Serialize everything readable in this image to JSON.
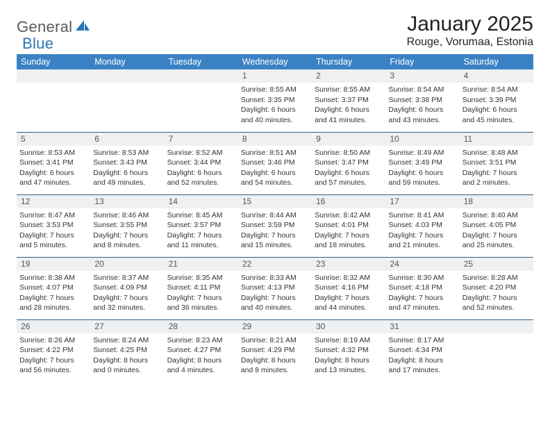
{
  "logo": {
    "text1": "General",
    "text2": "Blue"
  },
  "title": "January 2025",
  "location": "Rouge, Vorumaa, Estonia",
  "colors": {
    "header_bg": "#3b82c4",
    "header_text": "#ffffff",
    "daynum_bg": "#eef0f2",
    "row_border": "#2f5e87",
    "logo_gray": "#5a5a5a",
    "logo_blue": "#2a74b8"
  },
  "typography": {
    "title_fontsize": 30,
    "location_fontsize": 16,
    "weekday_fontsize": 12.5,
    "daynum_fontsize": 12,
    "body_fontsize": 10.5
  },
  "weekdays": [
    "Sunday",
    "Monday",
    "Tuesday",
    "Wednesday",
    "Thursday",
    "Friday",
    "Saturday"
  ],
  "weeks": [
    [
      null,
      null,
      null,
      {
        "n": "1",
        "sunrise": "8:55 AM",
        "sunset": "3:35 PM",
        "dl1": "Daylight: 6 hours",
        "dl2": "and 40 minutes."
      },
      {
        "n": "2",
        "sunrise": "8:55 AM",
        "sunset": "3:37 PM",
        "dl1": "Daylight: 6 hours",
        "dl2": "and 41 minutes."
      },
      {
        "n": "3",
        "sunrise": "8:54 AM",
        "sunset": "3:38 PM",
        "dl1": "Daylight: 6 hours",
        "dl2": "and 43 minutes."
      },
      {
        "n": "4",
        "sunrise": "8:54 AM",
        "sunset": "3:39 PM",
        "dl1": "Daylight: 6 hours",
        "dl2": "and 45 minutes."
      }
    ],
    [
      {
        "n": "5",
        "sunrise": "8:53 AM",
        "sunset": "3:41 PM",
        "dl1": "Daylight: 6 hours",
        "dl2": "and 47 minutes."
      },
      {
        "n": "6",
        "sunrise": "8:53 AM",
        "sunset": "3:43 PM",
        "dl1": "Daylight: 6 hours",
        "dl2": "and 49 minutes."
      },
      {
        "n": "7",
        "sunrise": "8:52 AM",
        "sunset": "3:44 PM",
        "dl1": "Daylight: 6 hours",
        "dl2": "and 52 minutes."
      },
      {
        "n": "8",
        "sunrise": "8:51 AM",
        "sunset": "3:46 PM",
        "dl1": "Daylight: 6 hours",
        "dl2": "and 54 minutes."
      },
      {
        "n": "9",
        "sunrise": "8:50 AM",
        "sunset": "3:47 PM",
        "dl1": "Daylight: 6 hours",
        "dl2": "and 57 minutes."
      },
      {
        "n": "10",
        "sunrise": "8:49 AM",
        "sunset": "3:49 PM",
        "dl1": "Daylight: 6 hours",
        "dl2": "and 59 minutes."
      },
      {
        "n": "11",
        "sunrise": "8:48 AM",
        "sunset": "3:51 PM",
        "dl1": "Daylight: 7 hours",
        "dl2": "and 2 minutes."
      }
    ],
    [
      {
        "n": "12",
        "sunrise": "8:47 AM",
        "sunset": "3:53 PM",
        "dl1": "Daylight: 7 hours",
        "dl2": "and 5 minutes."
      },
      {
        "n": "13",
        "sunrise": "8:46 AM",
        "sunset": "3:55 PM",
        "dl1": "Daylight: 7 hours",
        "dl2": "and 8 minutes."
      },
      {
        "n": "14",
        "sunrise": "8:45 AM",
        "sunset": "3:57 PM",
        "dl1": "Daylight: 7 hours",
        "dl2": "and 11 minutes."
      },
      {
        "n": "15",
        "sunrise": "8:44 AM",
        "sunset": "3:59 PM",
        "dl1": "Daylight: 7 hours",
        "dl2": "and 15 minutes."
      },
      {
        "n": "16",
        "sunrise": "8:42 AM",
        "sunset": "4:01 PM",
        "dl1": "Daylight: 7 hours",
        "dl2": "and 18 minutes."
      },
      {
        "n": "17",
        "sunrise": "8:41 AM",
        "sunset": "4:03 PM",
        "dl1": "Daylight: 7 hours",
        "dl2": "and 21 minutes."
      },
      {
        "n": "18",
        "sunrise": "8:40 AM",
        "sunset": "4:05 PM",
        "dl1": "Daylight: 7 hours",
        "dl2": "and 25 minutes."
      }
    ],
    [
      {
        "n": "19",
        "sunrise": "8:38 AM",
        "sunset": "4:07 PM",
        "dl1": "Daylight: 7 hours",
        "dl2": "and 28 minutes."
      },
      {
        "n": "20",
        "sunrise": "8:37 AM",
        "sunset": "4:09 PM",
        "dl1": "Daylight: 7 hours",
        "dl2": "and 32 minutes."
      },
      {
        "n": "21",
        "sunrise": "8:35 AM",
        "sunset": "4:11 PM",
        "dl1": "Daylight: 7 hours",
        "dl2": "and 36 minutes."
      },
      {
        "n": "22",
        "sunrise": "8:33 AM",
        "sunset": "4:13 PM",
        "dl1": "Daylight: 7 hours",
        "dl2": "and 40 minutes."
      },
      {
        "n": "23",
        "sunrise": "8:32 AM",
        "sunset": "4:16 PM",
        "dl1": "Daylight: 7 hours",
        "dl2": "and 44 minutes."
      },
      {
        "n": "24",
        "sunrise": "8:30 AM",
        "sunset": "4:18 PM",
        "dl1": "Daylight: 7 hours",
        "dl2": "and 47 minutes."
      },
      {
        "n": "25",
        "sunrise": "8:28 AM",
        "sunset": "4:20 PM",
        "dl1": "Daylight: 7 hours",
        "dl2": "and 52 minutes."
      }
    ],
    [
      {
        "n": "26",
        "sunrise": "8:26 AM",
        "sunset": "4:22 PM",
        "dl1": "Daylight: 7 hours",
        "dl2": "and 56 minutes."
      },
      {
        "n": "27",
        "sunrise": "8:24 AM",
        "sunset": "4:25 PM",
        "dl1": "Daylight: 8 hours",
        "dl2": "and 0 minutes."
      },
      {
        "n": "28",
        "sunrise": "8:23 AM",
        "sunset": "4:27 PM",
        "dl1": "Daylight: 8 hours",
        "dl2": "and 4 minutes."
      },
      {
        "n": "29",
        "sunrise": "8:21 AM",
        "sunset": "4:29 PM",
        "dl1": "Daylight: 8 hours",
        "dl2": "and 8 minutes."
      },
      {
        "n": "30",
        "sunrise": "8:19 AM",
        "sunset": "4:32 PM",
        "dl1": "Daylight: 8 hours",
        "dl2": "and 13 minutes."
      },
      {
        "n": "31",
        "sunrise": "8:17 AM",
        "sunset": "4:34 PM",
        "dl1": "Daylight: 8 hours",
        "dl2": "and 17 minutes."
      },
      null
    ]
  ]
}
